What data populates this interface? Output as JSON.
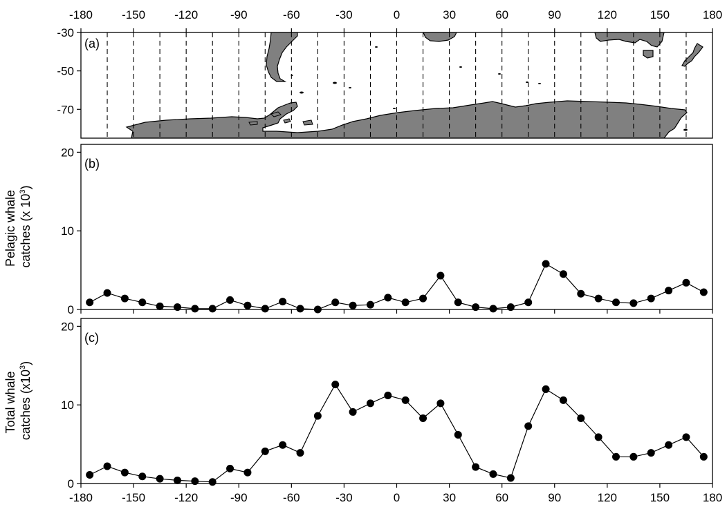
{
  "chart_data": [
    {
      "panel": "(a)",
      "type": "map",
      "x_ticks": [
        "-180",
        "-150",
        "-120",
        "-90",
        "-60",
        "-30",
        "0",
        "30",
        "60",
        "90",
        "120",
        "150",
        "180"
      ],
      "y_ticks": [
        "-30",
        "-50",
        "-70"
      ],
      "xlim": [
        -180,
        180
      ],
      "ylim": [
        -85,
        -30
      ],
      "sector_boundaries": [
        -165,
        -150,
        -135,
        -120,
        -105,
        -90,
        -75,
        -60,
        -45,
        -30,
        -15,
        0,
        15,
        30,
        45,
        60,
        75,
        90,
        105,
        120,
        135,
        150,
        165
      ],
      "land_color": "#808080"
    },
    {
      "panel": "(b)",
      "type": "line",
      "ylabel": [
        "Pelagic whale",
        "catches (x 10",
        "3",
        ")"
      ],
      "ylim": [
        0,
        21
      ],
      "y_ticks": [
        "0",
        "10",
        "20"
      ],
      "x": [
        -175,
        -165,
        -155,
        -145,
        -135,
        -125,
        -115,
        -105,
        -95,
        -85,
        -75,
        -65,
        -55,
        -45,
        -35,
        -25,
        -15,
        -5,
        5,
        15,
        25,
        35,
        45,
        55,
        65,
        75,
        85,
        95,
        105,
        115,
        125,
        135,
        145,
        155,
        165,
        175
      ],
      "values": [
        0.9,
        2.1,
        1.4,
        0.9,
        0.4,
        0.3,
        0.1,
        0.1,
        1.2,
        0.5,
        0.1,
        1.0,
        0.1,
        0.0,
        0.9,
        0.5,
        0.6,
        1.5,
        0.9,
        1.4,
        4.3,
        0.9,
        0.3,
        0.1,
        0.3,
        0.9,
        5.8,
        4.5,
        2.0,
        1.4,
        0.9,
        0.8,
        1.4,
        2.4,
        3.4,
        2.2
      ]
    },
    {
      "panel": "(c)",
      "type": "line",
      "ylabel": [
        "Total whale",
        "catches (x10",
        "3",
        ")"
      ],
      "ylim": [
        0,
        21
      ],
      "y_ticks": [
        "0",
        "10",
        "20"
      ],
      "x_ticks": [
        "-180",
        "-150",
        "-120",
        "-90",
        "-60",
        "-30",
        "0",
        "30",
        "60",
        "90",
        "120",
        "150",
        "180"
      ],
      "x": [
        -175,
        -165,
        -155,
        -145,
        -135,
        -125,
        -115,
        -105,
        -95,
        -85,
        -75,
        -65,
        -55,
        -45,
        -35,
        -25,
        -15,
        -5,
        5,
        15,
        25,
        35,
        45,
        55,
        65,
        75,
        85,
        95,
        105,
        115,
        125,
        135,
        145,
        155,
        165,
        175
      ],
      "values": [
        1.1,
        2.2,
        1.4,
        0.9,
        0.6,
        0.4,
        0.3,
        0.2,
        1.9,
        1.4,
        4.1,
        4.9,
        3.9,
        8.6,
        12.6,
        9.1,
        10.2,
        11.2,
        10.6,
        8.3,
        10.2,
        6.2,
        2.1,
        1.2,
        0.7,
        7.3,
        12.0,
        10.6,
        8.3,
        5.9,
        3.4,
        3.4,
        3.9,
        4.9,
        5.9,
        3.4
      ]
    }
  ]
}
